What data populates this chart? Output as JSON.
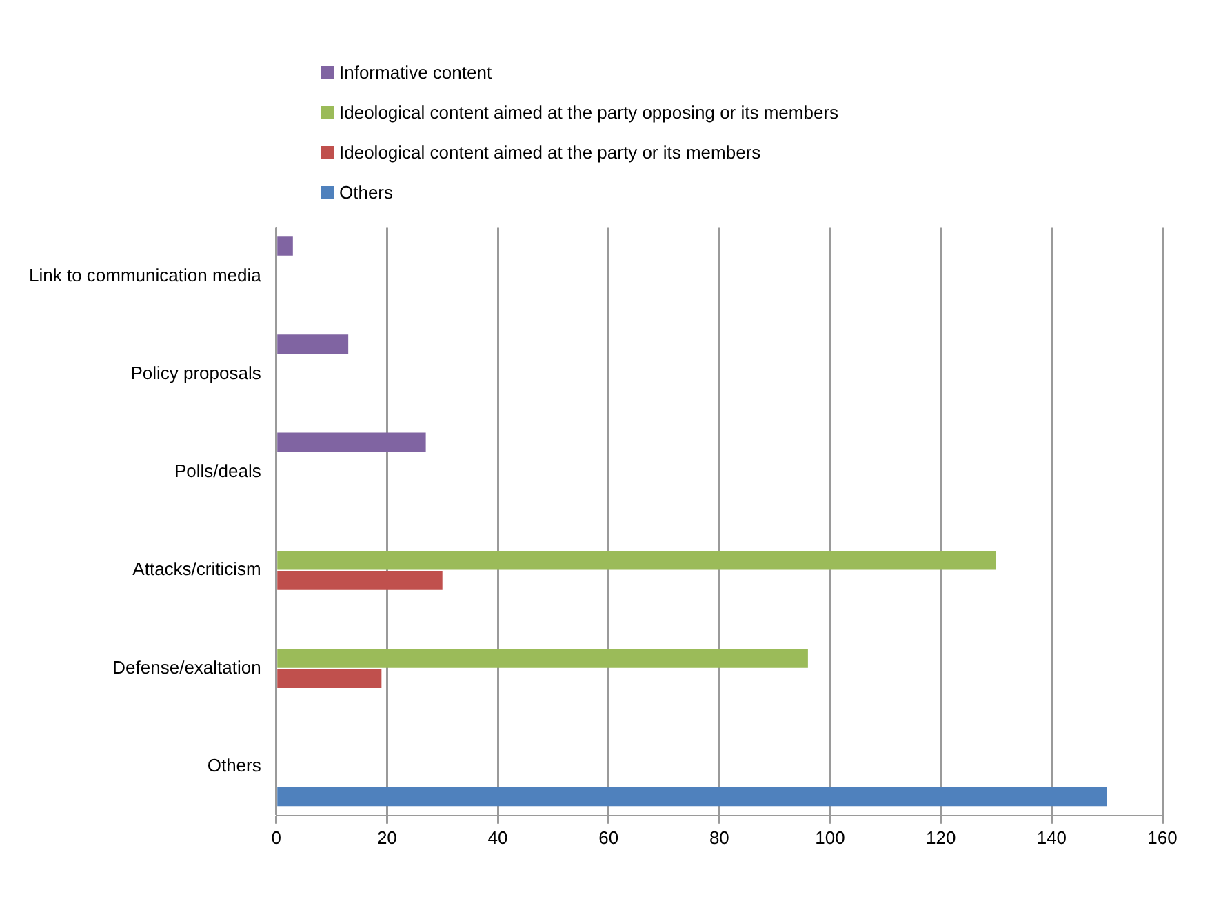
{
  "chart_data": {
    "type": "bar",
    "orientation": "horizontal",
    "categories": [
      "Link to communication media",
      "Policy proposals",
      "Polls/deals",
      "Attacks/criticism",
      "Defense/exaltation",
      "Others"
    ],
    "series": [
      {
        "name": "Informative content",
        "color": "#8064a2",
        "values": [
          3,
          13,
          27,
          null,
          null,
          null
        ]
      },
      {
        "name": "Ideological content aimed at the party opposing or its members",
        "color": "#9bbb59",
        "values": [
          null,
          null,
          null,
          130,
          96,
          null
        ]
      },
      {
        "name": "Ideological content aimed at the party or its members",
        "color": "#c0504d",
        "values": [
          null,
          null,
          null,
          30,
          19,
          null
        ]
      },
      {
        "name": "Others",
        "color": "#4f81bd",
        "values": [
          null,
          null,
          null,
          null,
          null,
          150
        ]
      }
    ],
    "xlim": [
      0,
      160
    ],
    "xticks": [
      0,
      20,
      40,
      60,
      80,
      100,
      120,
      140,
      160
    ],
    "grid": "x",
    "legend": "top"
  }
}
